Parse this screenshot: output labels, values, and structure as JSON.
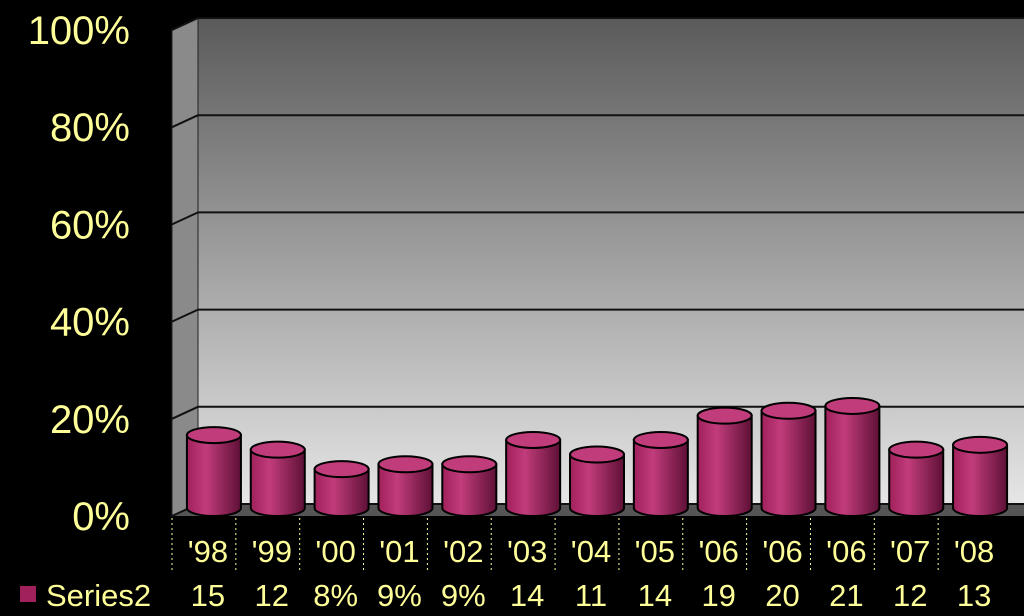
{
  "colors": {
    "background": "#000000",
    "text": "#FFFF99",
    "bar": "#A0215C",
    "bar_top": "#C13C7B",
    "bar_edge": "#000000",
    "wall_top": "#5A5A5A",
    "wall_bottom": "#E6E6E6"
  },
  "chart_data": {
    "type": "bar",
    "style": "3d-cylinder",
    "title": "",
    "xlabel": "",
    "ylabel": "",
    "ylim": [
      0,
      100
    ],
    "y_unit": "%",
    "y_ticks": [
      "0%",
      "20%",
      "40%",
      "60%",
      "80%",
      "100%"
    ],
    "y_tick_values": [
      0,
      20,
      40,
      60,
      80,
      100
    ],
    "grid": true,
    "legend": "data-table-left",
    "categories": [
      "'98",
      "'99",
      "'00",
      "'01",
      "'02",
      "'03",
      "'04",
      "'05",
      "'06",
      "'06",
      "'06",
      "'07",
      "'08"
    ],
    "series": [
      {
        "name": "Series2",
        "values": [
          15,
          12,
          8,
          9,
          9,
          14,
          11,
          14,
          19,
          20,
          21,
          12,
          13
        ],
        "labels": [
          "15",
          "12",
          "8%",
          "9%",
          "9%",
          "14",
          "11",
          "14",
          "19",
          "20",
          "21",
          "12",
          "13"
        ]
      }
    ]
  }
}
